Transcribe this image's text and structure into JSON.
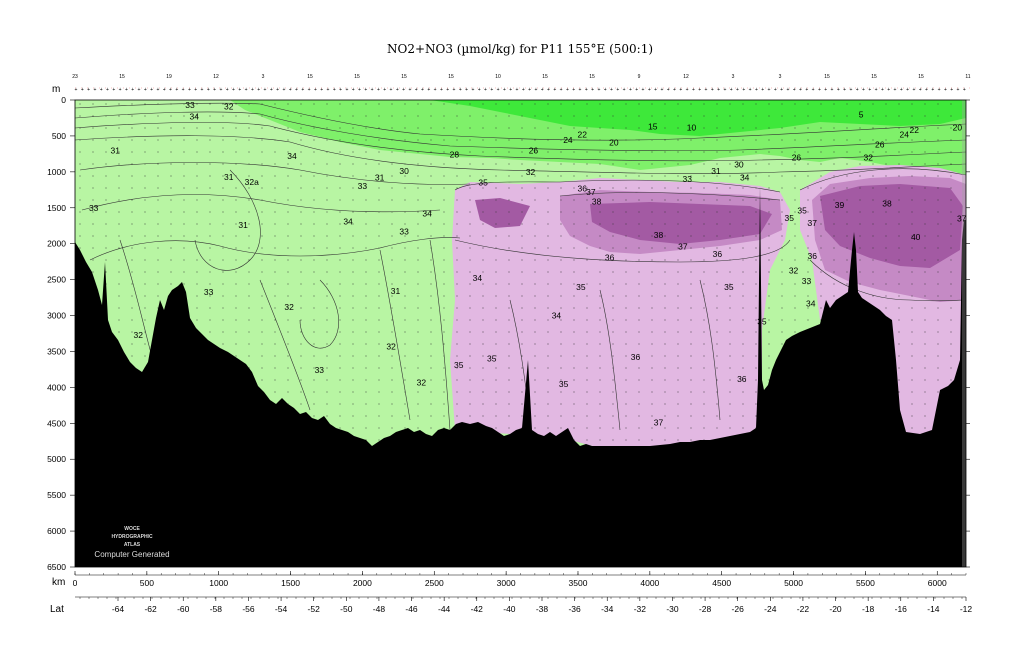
{
  "chart_data": {
    "type": "heatmap",
    "title": "NO2+NO3 (µmol/kg) for P11 155°E (500:1)",
    "x_axis": {
      "label": "km",
      "range": [
        0,
        6200
      ],
      "ticks": [
        0,
        500,
        1000,
        1500,
        2000,
        2500,
        3000,
        3500,
        4000,
        4500,
        5000,
        5500,
        6000
      ]
    },
    "y_axis": {
      "label": "m",
      "range": [
        6500,
        0
      ],
      "reversed": true,
      "ticks": [
        0,
        500,
        1000,
        1500,
        2000,
        2500,
        3000,
        3500,
        4000,
        4500,
        5000,
        5500,
        6000,
        6500
      ]
    },
    "lat_axis": {
      "label": "Lat",
      "ticks": [
        "-64",
        "-62",
        "-60",
        "-58",
        "-56",
        "-54",
        "-52",
        "-50",
        "-48",
        "-46",
        "-44",
        "-42",
        "-40",
        "-38",
        "-36",
        "-34",
        "-32",
        "-30",
        "-28",
        "-26",
        "-24",
        "-22",
        "-20",
        "-18",
        "-16",
        "-14",
        "-12"
      ]
    },
    "station_labels": [
      "23",
      "15",
      "19",
      "12",
      "3",
      "15",
      "15",
      "15",
      "15",
      "10",
      "15",
      "15",
      "9",
      "12",
      "3",
      "3",
      "15",
      "15",
      "15",
      "11"
    ],
    "color_bands": [
      {
        "range": "< 35",
        "color": "#b8f5a3"
      },
      {
        "range": "< 30",
        "color": "#7ff06a"
      },
      {
        "range": "< 20",
        "color": "#3ee83a"
      },
      {
        "range": "35-37",
        "color": "#e2b8e2"
      },
      {
        "range": "37-39",
        "color": "#c58ac5"
      },
      {
        "range": "> 39",
        "color": "#a35aa3"
      },
      {
        "range": "bottom",
        "color": "#000000"
      }
    ],
    "contour_labels": [
      {
        "text": "33",
        "x": 800,
        "y": 70
      },
      {
        "text": "32",
        "x": 1070,
        "y": 90
      },
      {
        "text": "34",
        "x": 830,
        "y": 230
      },
      {
        "text": "31",
        "x": 280,
        "y": 700
      },
      {
        "text": "31",
        "x": 1070,
        "y": 1070
      },
      {
        "text": "32a",
        "x": 1230,
        "y": 1140
      },
      {
        "text": "33",
        "x": 130,
        "y": 1500
      },
      {
        "text": "31",
        "x": 1170,
        "y": 1740
      },
      {
        "text": "34",
        "x": 1510,
        "y": 780
      },
      {
        "text": "33",
        "x": 2000,
        "y": 1200
      },
      {
        "text": "31",
        "x": 2120,
        "y": 1080
      },
      {
        "text": "30",
        "x": 2290,
        "y": 990
      },
      {
        "text": "34",
        "x": 1900,
        "y": 1690
      },
      {
        "text": "33",
        "x": 2290,
        "y": 1830
      },
      {
        "text": "34",
        "x": 2450,
        "y": 1580
      },
      {
        "text": "28",
        "x": 2640,
        "y": 760
      },
      {
        "text": "35",
        "x": 2840,
        "y": 1150
      },
      {
        "text": "26",
        "x": 3190,
        "y": 700
      },
      {
        "text": "24",
        "x": 3430,
        "y": 560
      },
      {
        "text": "22",
        "x": 3530,
        "y": 480
      },
      {
        "text": "20",
        "x": 3750,
        "y": 590
      },
      {
        "text": "15",
        "x": 4020,
        "y": 370
      },
      {
        "text": "10",
        "x": 4290,
        "y": 380
      },
      {
        "text": "32",
        "x": 3170,
        "y": 1000
      },
      {
        "text": "36",
        "x": 3530,
        "y": 1230
      },
      {
        "text": "37",
        "x": 3590,
        "y": 1280
      },
      {
        "text": "38",
        "x": 3630,
        "y": 1410
      },
      {
        "text": "33",
        "x": 4260,
        "y": 1100
      },
      {
        "text": "31",
        "x": 4460,
        "y": 990
      },
      {
        "text": "30",
        "x": 4620,
        "y": 900
      },
      {
        "text": "34",
        "x": 4660,
        "y": 1080
      },
      {
        "text": "38",
        "x": 4060,
        "y": 1880
      },
      {
        "text": "37",
        "x": 4230,
        "y": 2040
      },
      {
        "text": "36",
        "x": 3720,
        "y": 2190
      },
      {
        "text": "36",
        "x": 4470,
        "y": 2140
      },
      {
        "text": "35",
        "x": 4550,
        "y": 2600
      },
      {
        "text": "34",
        "x": 2800,
        "y": 2480
      },
      {
        "text": "35",
        "x": 3520,
        "y": 2600
      },
      {
        "text": "34",
        "x": 3350,
        "y": 3000
      },
      {
        "text": "33",
        "x": 930,
        "y": 2670
      },
      {
        "text": "32",
        "x": 1490,
        "y": 2880
      },
      {
        "text": "31",
        "x": 2230,
        "y": 2660
      },
      {
        "text": "33",
        "x": 200,
        "y": 3150
      },
      {
        "text": "32",
        "x": 440,
        "y": 3270
      },
      {
        "text": "32",
        "x": 2200,
        "y": 3430
      },
      {
        "text": "33",
        "x": 1700,
        "y": 3760
      },
      {
        "text": "35",
        "x": 2670,
        "y": 3690
      },
      {
        "text": "35",
        "x": 2900,
        "y": 3600
      },
      {
        "text": "36",
        "x": 3900,
        "y": 3580
      },
      {
        "text": "35",
        "x": 3400,
        "y": 3950
      },
      {
        "text": "32",
        "x": 2410,
        "y": 3930
      },
      {
        "text": "36",
        "x": 4640,
        "y": 3880
      },
      {
        "text": "35",
        "x": 4780,
        "y": 3080
      },
      {
        "text": "37",
        "x": 4060,
        "y": 4490
      },
      {
        "text": "26",
        "x": 5020,
        "y": 800
      },
      {
        "text": "35",
        "x": 5060,
        "y": 1540
      },
      {
        "text": "35",
        "x": 4970,
        "y": 1640
      },
      {
        "text": "37",
        "x": 5130,
        "y": 1710
      },
      {
        "text": "39",
        "x": 5320,
        "y": 1460
      },
      {
        "text": "38",
        "x": 5650,
        "y": 1440
      },
      {
        "text": "40",
        "x": 5850,
        "y": 1910
      },
      {
        "text": "36",
        "x": 5130,
        "y": 2170
      },
      {
        "text": "32",
        "x": 5000,
        "y": 2370
      },
      {
        "text": "33",
        "x": 5090,
        "y": 2520
      },
      {
        "text": "34",
        "x": 5120,
        "y": 2830
      },
      {
        "text": "5",
        "x": 5470,
        "y": 200
      },
      {
        "text": "26",
        "x": 5600,
        "y": 620
      },
      {
        "text": "24",
        "x": 5770,
        "y": 480
      },
      {
        "text": "22",
        "x": 5840,
        "y": 420
      },
      {
        "text": "20",
        "x": 6140,
        "y": 380
      },
      {
        "text": "32",
        "x": 5520,
        "y": 800
      },
      {
        "text": "37",
        "x": 6170,
        "y": 1650
      }
    ],
    "grid": false,
    "watermark": [
      "WOCE",
      "HYDROGRAPHIC",
      "ATLAS",
      "Computer Generated"
    ]
  }
}
